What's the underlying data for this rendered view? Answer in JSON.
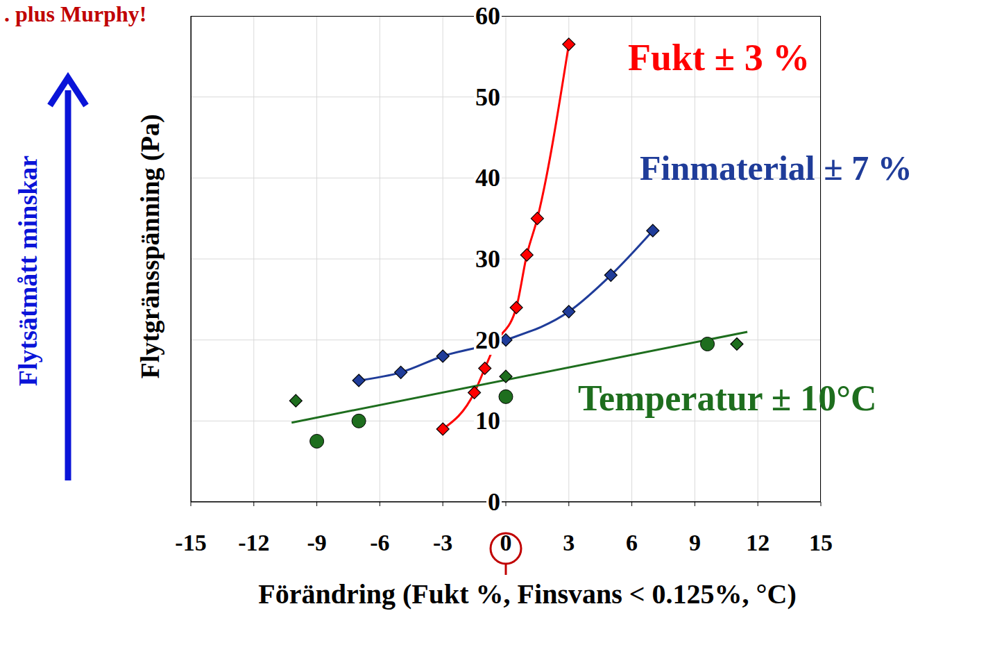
{
  "chart_data": {
    "type": "line",
    "title": ". plus Murphy!",
    "x_label": "Förändring (Fukt %, Finsvans < 0.125%, °C)",
    "y_label": "Flytgränsspänning (Pa)",
    "annotations": [
      "Flytsätmått minskar"
    ],
    "xlim": [
      -15,
      15
    ],
    "xticks": [
      -15,
      -12,
      -9,
      -6,
      -3,
      0,
      3,
      6,
      9,
      12,
      15
    ],
    "ylim": [
      0,
      60
    ],
    "yticks": [
      0,
      10,
      20,
      30,
      40,
      50,
      60
    ],
    "grid": true,
    "series": [
      {
        "name": "Fukt ± 3 %",
        "type": "line",
        "color": "#ff0000",
        "marker": "diamond",
        "x": [
          -3,
          -1.5,
          -1,
          -0.5,
          0.5,
          1,
          1.5,
          3
        ],
        "values": [
          9,
          13.5,
          16.5,
          19.5,
          24,
          30.5,
          35,
          56.5
        ]
      },
      {
        "name": "Finmaterial ± 7 %",
        "type": "line",
        "color": "#1f3c99",
        "marker": "diamond",
        "x": [
          -7,
          -5,
          -3,
          0,
          3,
          5,
          7
        ],
        "values": [
          15,
          16,
          18,
          20,
          23.5,
          28,
          33.5
        ]
      },
      {
        "name": "Temperatur ± 10°C",
        "type": "scatter",
        "color": "#1e6e1e",
        "marker": "diamond",
        "x": [
          -10,
          0,
          11
        ],
        "values": [
          12.5,
          15.5,
          19.5
        ]
      },
      {
        "type": "scatter",
        "color": "#1e6e1e",
        "marker": "circle",
        "x": [
          -9,
          -7,
          0,
          9.6
        ],
        "values": [
          7.5,
          10,
          13,
          19.5
        ]
      },
      {
        "type": "line",
        "color": "#1e6e1e",
        "x": [
          -10.2,
          11.5
        ],
        "values": [
          9.8,
          21
        ]
      }
    ]
  }
}
